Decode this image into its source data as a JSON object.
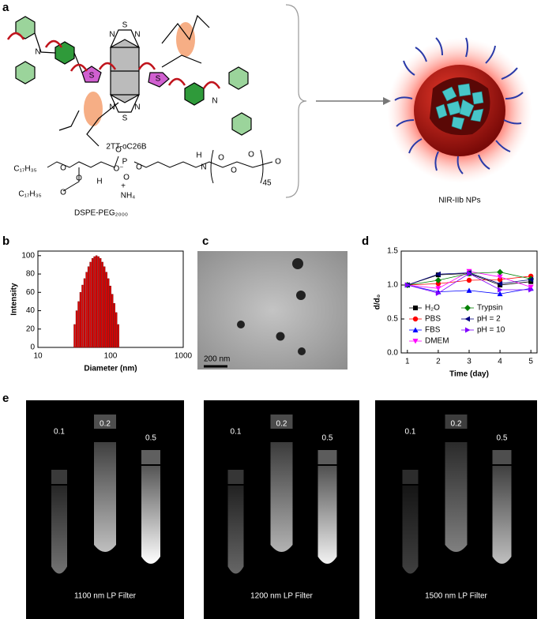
{
  "panel_labels": [
    "a",
    "b",
    "c",
    "d",
    "e"
  ],
  "scheme": {
    "molecule": "2TT-oC26B",
    "lipid": "DSPE-PEG₂₀₀₀",
    "nanoparticle": "NIR-IIb NPs",
    "atoms": [
      "N",
      "S",
      "S",
      "N",
      "N",
      "N",
      "N",
      "S",
      "S",
      "N"
    ],
    "lipid_atoms": [
      "C₁₇H₃₅",
      "O",
      "O",
      "O",
      "P",
      "O",
      "O",
      "O⁻",
      "H",
      "N",
      "O",
      "O",
      "O",
      "45",
      "O",
      "C₁₇H₃₅",
      "O",
      "H",
      "+",
      "NH₄"
    ]
  },
  "tem": {
    "scale_bar": "200 nm"
  },
  "imaging": {
    "concentrations": [
      "0.1",
      "0.2",
      "0.5"
    ],
    "filters": [
      "1100 nm LP Filter",
      "1200 nm LP Filter",
      "1500 nm LP Filter"
    ]
  },
  "chart_data": [
    {
      "type": "bar",
      "xlabel": "Diameter (nm)",
      "ylabel": "Intensity",
      "x": [
        32,
        34.1,
        36.3,
        38.6,
        41.1,
        43.8,
        46.7,
        49.7,
        52.9,
        56.4,
        60,
        63.9,
        68.1,
        72.5,
        77.2,
        82.2,
        87.6,
        93.3,
        99.3,
        105.8,
        112.7,
        120,
        127.8
      ],
      "values": [
        25,
        40,
        50,
        60,
        68,
        75,
        82,
        88,
        93,
        97,
        99,
        100,
        99,
        97,
        93,
        88,
        82,
        75,
        67,
        58,
        48,
        38,
        25
      ],
      "color": "#e00000",
      "xscale": "log",
      "xlim": [
        10,
        1000
      ],
      "xticks": [
        10,
        100,
        1000
      ],
      "ylim": [
        0,
        105
      ],
      "yticks": [
        0,
        20,
        40,
        60,
        80,
        100
      ]
    },
    {
      "type": "line",
      "xlabel": "Time (day)",
      "ylabel": "d/d₀",
      "x": [
        1,
        2,
        3,
        4,
        5
      ],
      "series": [
        {
          "name": "H₂O",
          "color": "#000000",
          "marker": "square",
          "values": [
            1,
            1.15,
            1.17,
            1.0,
            1.05
          ]
        },
        {
          "name": "PBS",
          "color": "#ff0000",
          "marker": "circle",
          "values": [
            1,
            1.02,
            1.07,
            1.08,
            1.13
          ]
        },
        {
          "name": "FBS",
          "color": "#0000ff",
          "marker": "triangle-up",
          "values": [
            1,
            0.9,
            0.92,
            0.87,
            0.95
          ]
        },
        {
          "name": "DMEM",
          "color": "#ff00ff",
          "marker": "triangle-down",
          "values": [
            1,
            0.95,
            1.2,
            1.12,
            0.97
          ]
        },
        {
          "name": "Trypsin",
          "color": "#008000",
          "marker": "diamond",
          "values": [
            1,
            1.07,
            1.17,
            1.19,
            1.09
          ]
        },
        {
          "name": "pH = 2",
          "color": "#000080",
          "marker": "triangle-left",
          "values": [
            1,
            1.16,
            1.18,
            1.02,
            1.08
          ]
        },
        {
          "name": "pH = 10",
          "color": "#8000ff",
          "marker": "triangle-right",
          "values": [
            1,
            0.88,
            1.17,
            0.93,
            0.93
          ]
        }
      ],
      "xlim": [
        0.8,
        5.2
      ],
      "xticks": [
        1,
        2,
        3,
        4,
        5
      ],
      "ylim": [
        0,
        1.5
      ],
      "yticks": [
        {
          "value": 0,
          "label": "0.0"
        },
        0.5,
        {
          "value": 1,
          "label": "1.0"
        },
        1.5
      ]
    }
  ]
}
